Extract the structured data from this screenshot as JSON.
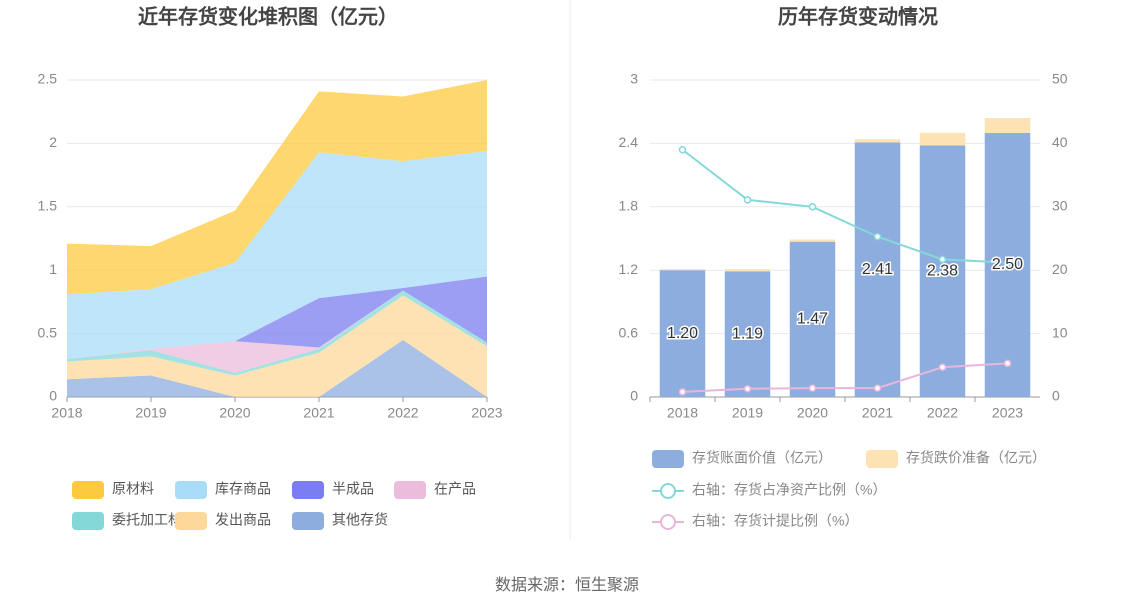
{
  "chart_data": [
    {
      "type": "stacked_area",
      "title": "近年存货变化堆积图（亿元）",
      "categories": [
        "2018",
        "2019",
        "2020",
        "2021",
        "2022",
        "2023"
      ],
      "series": [
        {
          "name": "原材料",
          "color": "#fdc93f",
          "values": [
            0.4,
            0.34,
            0.41,
            0.48,
            0.51,
            0.56
          ]
        },
        {
          "name": "库存商品",
          "color": "#a8dcf7",
          "values": [
            0.51,
            0.47,
            0.62,
            1.15,
            1.0,
            0.99
          ]
        },
        {
          "name": "半成品",
          "color": "#7b7ef0",
          "values": [
            0,
            0,
            0,
            0.39,
            0.02,
            0.52
          ]
        },
        {
          "name": "在产品",
          "color": "#ebbcdc",
          "values": [
            0,
            0.01,
            0.25,
            0.01,
            0,
            0
          ]
        },
        {
          "name": "委托加工材料",
          "color": "#84d8d8",
          "values": [
            0.02,
            0.05,
            0.02,
            0.03,
            0.04,
            0.03
          ]
        },
        {
          "name": "发出商品",
          "color": "#fdd89a",
          "values": [
            0.14,
            0.15,
            0.17,
            0.35,
            0.35,
            0.4
          ]
        },
        {
          "name": "其他存货",
          "color": "#8eaddf",
          "values": [
            0.14,
            0.17,
            0,
            0,
            0.45,
            0
          ]
        }
      ],
      "ylim": [
        0,
        2.5
      ],
      "yticks": [
        0,
        0.5,
        1,
        1.5,
        2,
        2.5
      ],
      "grid": true
    },
    {
      "type": "bar_line",
      "title": "历年存货变动情况",
      "categories": [
        "2018",
        "2019",
        "2020",
        "2021",
        "2022",
        "2023"
      ],
      "series": [
        {
          "name": "存货账面价值（亿元）",
          "color": "#8eaddf",
          "values": [
            1.2,
            1.19,
            1.47,
            2.41,
            2.38,
            2.5
          ],
          "value_labels": [
            "1.20",
            "1.19",
            "1.47",
            "2.41",
            "2.38",
            "2.50"
          ]
        },
        {
          "name": "存货跌价准备（亿元）",
          "color": "#fde3b4",
          "values": [
            0.01,
            0.02,
            0.02,
            0.03,
            0.12,
            0.14
          ]
        },
        {
          "name": "右轴：存货占净资产比例（%）",
          "color": "#84d8d8",
          "axis": "y2",
          "values": [
            39,
            31.1,
            30,
            25.3,
            21.7,
            21.2
          ]
        },
        {
          "name": "右轴：存货计提比例（%）",
          "color": "#e8b5dc",
          "axis": "y2",
          "values": [
            0.8,
            1.3,
            1.4,
            1.4,
            4.7,
            5.3
          ]
        }
      ],
      "ylim": [
        0,
        3
      ],
      "yticks": [
        0,
        0.6,
        1.2,
        1.8,
        2.4,
        3
      ],
      "y2lim": [
        0,
        50
      ],
      "y2ticks": [
        0,
        10,
        20,
        30,
        40,
        50
      ],
      "grid": true
    }
  ],
  "source": "数据来源：恒生聚源"
}
